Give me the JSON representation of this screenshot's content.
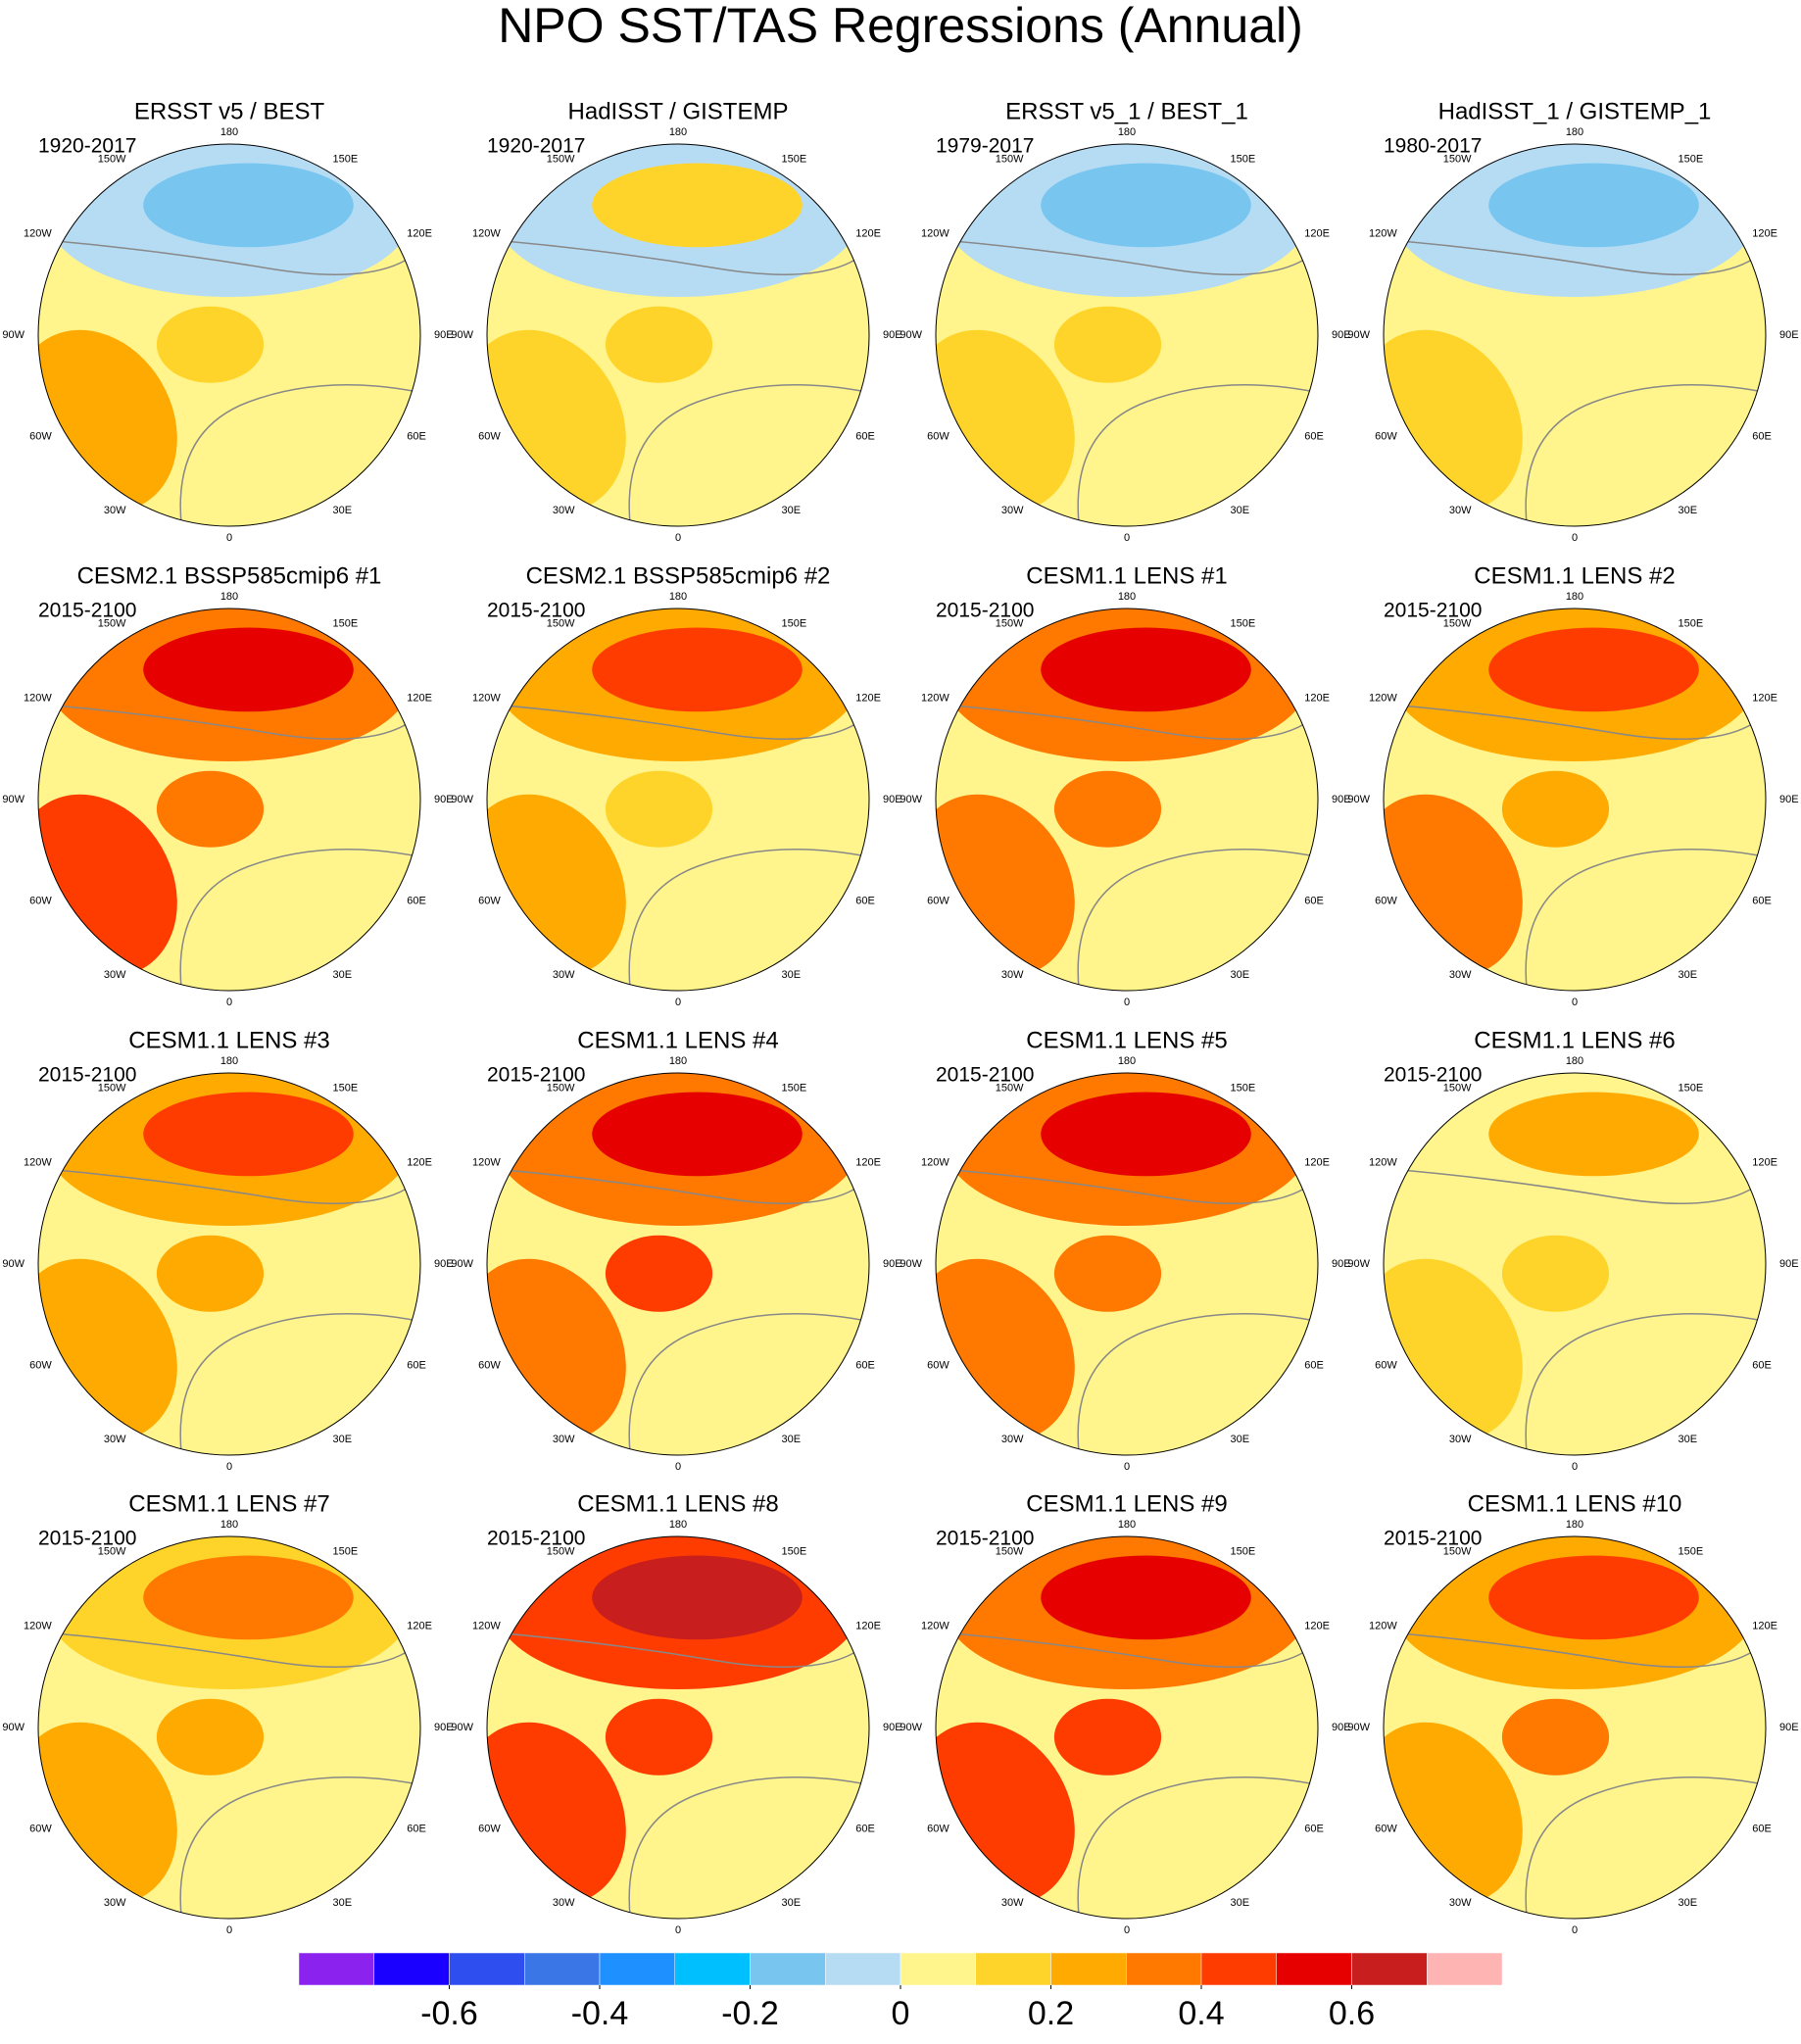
{
  "title": "NPO SST/TAS Regressions (Annual)",
  "panels": [
    {
      "title": "ERSST v5 / BEST",
      "period": "1920-2017"
    },
    {
      "title": "HadISST / GISTEMP",
      "period": "1920-2017"
    },
    {
      "title": "ERSST v5_1 / BEST_1",
      "period": "1979-2017"
    },
    {
      "title": "HadISST_1 / GISTEMP_1",
      "period": "1980-2017"
    },
    {
      "title": "CESM2.1 BSSP585cmip6 #1",
      "period": "2015-2100"
    },
    {
      "title": "CESM2.1 BSSP585cmip6 #2",
      "period": "2015-2100"
    },
    {
      "title": "CESM1.1 LENS #1",
      "period": "2015-2100"
    },
    {
      "title": "CESM1.1 LENS #2",
      "period": "2015-2100"
    },
    {
      "title": "CESM1.1 LENS #3",
      "period": "2015-2100"
    },
    {
      "title": "CESM1.1 LENS #4",
      "period": "2015-2100"
    },
    {
      "title": "CESM1.1 LENS #5",
      "period": "2015-2100"
    },
    {
      "title": "CESM1.1 LENS #6",
      "period": "2015-2100"
    },
    {
      "title": "CESM1.1 LENS #7",
      "period": "2015-2100"
    },
    {
      "title": "CESM1.1 LENS #8",
      "period": "2015-2100"
    },
    {
      "title": "CESM1.1 LENS #9",
      "period": "2015-2100"
    },
    {
      "title": "CESM1.1 LENS #10",
      "period": "2015-2100"
    }
  ],
  "longitude_labels": [
    "180",
    "150E",
    "120E",
    "90E",
    "60E",
    "30E",
    "0",
    "30W",
    "60W",
    "90W",
    "120W",
    "150W"
  ],
  "colorbar": {
    "colors": [
      "#8c22ee",
      "#1a00ff",
      "#2e4ef0",
      "#3a76e6",
      "#1e90ff",
      "#00bfff",
      "#78c6f0",
      "#b6dcf4",
      "#fff58c",
      "#ffd42a",
      "#ffaa00",
      "#ff7800",
      "#ff3c00",
      "#e60000",
      "#c81e1e",
      "#ffb4b4"
    ],
    "levels": [
      -0.7,
      -0.6,
      -0.5,
      -0.4,
      -0.3,
      -0.2,
      -0.1,
      0,
      0.1,
      0.2,
      0.3,
      0.4,
      0.5,
      0.6,
      0.7
    ],
    "ticks": [
      -0.6,
      -0.4,
      -0.2,
      0,
      0.2,
      0.4,
      0.6
    ]
  }
}
